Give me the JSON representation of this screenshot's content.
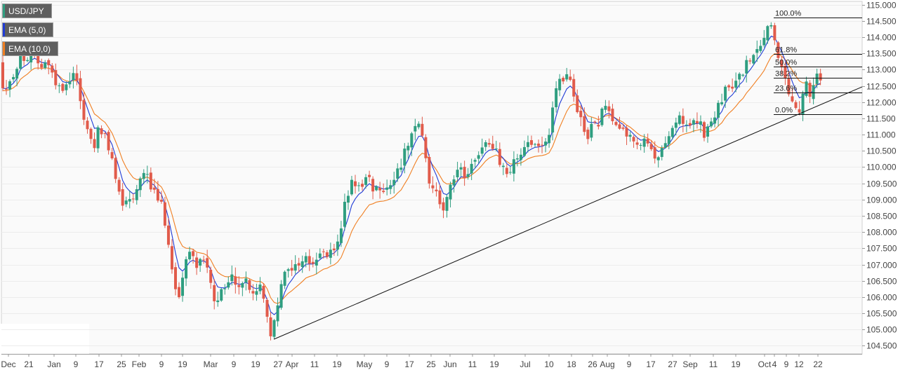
{
  "legend": {
    "items": [
      {
        "label": "USD/JPY",
        "color": "#2f9e80"
      },
      {
        "label": "EMA (5,0)",
        "color": "#1f3bd6"
      },
      {
        "label": "EMA (10,0)",
        "color": "#f07f22"
      }
    ]
  },
  "chart_data": {
    "type": "candlestick",
    "title": "USD/JPY",
    "series": [
      {
        "name": "USD/JPY"
      },
      {
        "name": "EMA (5,0)"
      },
      {
        "name": "EMA (10,0)"
      }
    ],
    "ylim": [
      104.25,
      115.1
    ],
    "y_ticks": [
      "115.000",
      "114.500",
      "114.000",
      "113.500",
      "113.000",
      "112.500",
      "112.000",
      "111.500",
      "111.000",
      "110.500",
      "110.000",
      "109.500",
      "109.000",
      "108.500",
      "108.000",
      "107.500",
      "107.000",
      "106.500",
      "106.000",
      "105.500",
      "105.000",
      "104.500"
    ],
    "x_tick_labels": [
      "Dec",
      "21",
      "Jan",
      "9",
      "17",
      "25",
      "Feb",
      "9",
      "19",
      "Mar",
      "9",
      "19",
      "27",
      "Apr",
      "11",
      "19",
      "May",
      "9",
      "17",
      "25",
      "Jun",
      "11",
      "19",
      "Jul",
      "10",
      "18",
      "26",
      "Aug",
      "9",
      "17",
      "27",
      "Sep",
      "11",
      "19",
      "Oct",
      "4",
      "9",
      "12",
      "22"
    ],
    "up_color": "#2f9e80",
    "down_color": "#e15b4b",
    "ema5_color": "#1f3bd6",
    "ema10_color": "#f07f22",
    "grid": true,
    "price_path": [
      [
        0,
        113.3
      ],
      [
        5,
        112.2
      ],
      [
        12,
        112.7
      ],
      [
        20,
        112.8
      ],
      [
        30,
        113.5
      ],
      [
        38,
        113.3
      ],
      [
        48,
        113.4
      ],
      [
        58,
        113.2
      ],
      [
        66,
        113.3
      ],
      [
        75,
        112.8
      ],
      [
        85,
        112.4
      ],
      [
        95,
        112.6
      ],
      [
        105,
        113.0
      ],
      [
        112,
        112.5
      ],
      [
        118,
        111.5
      ],
      [
        125,
        111.2
      ],
      [
        132,
        110.6
      ],
      [
        140,
        111.1
      ],
      [
        148,
        111.0
      ],
      [
        156,
        110.4
      ],
      [
        162,
        110.0
      ],
      [
        168,
        109.3
      ],
      [
        175,
        108.9
      ],
      [
        182,
        109.2
      ],
      [
        190,
        109.0
      ],
      [
        198,
        109.6
      ],
      [
        205,
        110.0
      ],
      [
        212,
        109.5
      ],
      [
        218,
        109.3
      ],
      [
        225,
        108.9
      ],
      [
        232,
        108.7
      ],
      [
        238,
        108.0
      ],
      [
        243,
        107.3
      ],
      [
        248,
        106.3
      ],
      [
        255,
        106.0
      ],
      [
        262,
        107.0
      ],
      [
        268,
        107.4
      ],
      [
        275,
        107.2
      ],
      [
        282,
        107.0
      ],
      [
        288,
        107.3
      ],
      [
        295,
        106.8
      ],
      [
        302,
        106.2
      ],
      [
        308,
        105.6
      ],
      [
        315,
        106.1
      ],
      [
        322,
        106.3
      ],
      [
        330,
        106.6
      ],
      [
        338,
        106.3
      ],
      [
        345,
        106.5
      ],
      [
        352,
        106.4
      ],
      [
        358,
        106.1
      ],
      [
        365,
        106.2
      ],
      [
        372,
        106.3
      ],
      [
        378,
        105.6
      ],
      [
        385,
        104.9
      ],
      [
        392,
        105.2
      ],
      [
        398,
        106.0
      ],
      [
        405,
        106.8
      ],
      [
        412,
        107.0
      ],
      [
        420,
        106.9
      ],
      [
        428,
        107.1
      ],
      [
        436,
        107.2
      ],
      [
        444,
        107.0
      ],
      [
        452,
        107.2
      ],
      [
        460,
        107.4
      ],
      [
        468,
        107.2
      ],
      [
        476,
        107.5
      ],
      [
        484,
        108.0
      ],
      [
        490,
        108.7
      ],
      [
        496,
        109.2
      ],
      [
        503,
        109.6
      ],
      [
        510,
        109.3
      ],
      [
        517,
        109.6
      ],
      [
        524,
        109.7
      ],
      [
        531,
        109.4
      ],
      [
        538,
        109.5
      ],
      [
        545,
        109.2
      ],
      [
        552,
        109.5
      ],
      [
        560,
        109.7
      ],
      [
        568,
        109.9
      ],
      [
        575,
        110.4
      ],
      [
        582,
        110.6
      ],
      [
        590,
        111.1
      ],
      [
        597,
        111.4
      ],
      [
        604,
        110.5
      ],
      [
        610,
        109.6
      ],
      [
        617,
        109.4
      ],
      [
        624,
        109.1
      ],
      [
        631,
        108.6
      ],
      [
        638,
        109.0
      ],
      [
        645,
        109.7
      ],
      [
        652,
        110.0
      ],
      [
        660,
        109.8
      ],
      [
        668,
        109.9
      ],
      [
        675,
        110.3
      ],
      [
        682,
        110.4
      ],
      [
        690,
        110.6
      ],
      [
        698,
        110.8
      ],
      [
        705,
        110.6
      ],
      [
        712,
        110.2
      ],
      [
        718,
        110.1
      ],
      [
        725,
        109.8
      ],
      [
        732,
        110.1
      ],
      [
        740,
        110.3
      ],
      [
        748,
        110.7
      ],
      [
        756,
        110.6
      ],
      [
        764,
        110.6
      ],
      [
        772,
        110.5
      ],
      [
        780,
        110.8
      ],
      [
        786,
        111.8
      ],
      [
        792,
        112.3
      ],
      [
        798,
        112.6
      ],
      [
        805,
        112.7
      ],
      [
        812,
        112.8
      ],
      [
        818,
        112.0
      ],
      [
        824,
        111.6
      ],
      [
        830,
        111.2
      ],
      [
        838,
        111.0
      ],
      [
        845,
        111.3
      ],
      [
        852,
        111.4
      ],
      [
        860,
        111.8
      ],
      [
        868,
        111.6
      ],
      [
        876,
        111.5
      ],
      [
        884,
        111.3
      ],
      [
        892,
        111.0
      ],
      [
        900,
        111.0
      ],
      [
        908,
        110.7
      ],
      [
        916,
        110.8
      ],
      [
        924,
        110.6
      ],
      [
        930,
        110.3
      ],
      [
        936,
        110.1
      ],
      [
        942,
        110.6
      ],
      [
        950,
        111.0
      ],
      [
        958,
        111.2
      ],
      [
        966,
        111.5
      ],
      [
        974,
        111.3
      ],
      [
        982,
        111.2
      ],
      [
        990,
        111.3
      ],
      [
        996,
        111.5
      ],
      [
        1002,
        111.0
      ],
      [
        1008,
        111.1
      ],
      [
        1014,
        111.4
      ],
      [
        1020,
        111.6
      ],
      [
        1026,
        112.0
      ],
      [
        1032,
        112.3
      ],
      [
        1040,
        112.5
      ],
      [
        1048,
        112.6
      ],
      [
        1055,
        112.8
      ],
      [
        1062,
        113.1
      ],
      [
        1068,
        113.2
      ],
      [
        1075,
        113.6
      ],
      [
        1082,
        113.8
      ],
      [
        1088,
        114.0
      ],
      [
        1094,
        114.4
      ],
      [
        1098,
        114.5
      ],
      [
        1103,
        113.9
      ],
      [
        1108,
        113.5
      ],
      [
        1113,
        113.0
      ],
      [
        1118,
        112.8
      ],
      [
        1123,
        112.4
      ],
      [
        1128,
        112.0
      ],
      [
        1133,
        112.0
      ],
      [
        1138,
        111.8
      ],
      [
        1143,
        112.3
      ],
      [
        1148,
        112.6
      ],
      [
        1153,
        112.3
      ],
      [
        1158,
        112.6
      ],
      [
        1163,
        112.7
      ],
      [
        1168,
        112.8
      ],
      [
        1172,
        112.8
      ]
    ],
    "ema10_offset": [
      [
        0,
        -0.2
      ],
      [
        100,
        -0.3
      ],
      [
        180,
        0.0
      ],
      [
        280,
        0.2
      ],
      [
        380,
        0.4
      ],
      [
        420,
        -0.4
      ],
      [
        500,
        -0.7
      ],
      [
        580,
        -0.7
      ],
      [
        640,
        0.0
      ],
      [
        720,
        0.0
      ],
      [
        790,
        -0.7
      ],
      [
        840,
        0.0
      ],
      [
        1000,
        -0.3
      ],
      [
        1090,
        -0.8
      ],
      [
        1140,
        0.3
      ],
      [
        1172,
        -0.1
      ]
    ],
    "trendline": {
      "from": {
        "x": "Mar 26",
        "y": 104.7
      },
      "to": {
        "x": "Oct 25",
        "y": 112.47
      }
    },
    "fibonacci": {
      "levels": [
        {
          "label": "100.0%",
          "value": 114.6
        },
        {
          "label": "61.8%",
          "value": 113.48
        },
        {
          "label": "50.0%",
          "value": 113.1
        },
        {
          "label": "38.2%",
          "value": 112.75
        },
        {
          "label": "23.6%",
          "value": 112.3
        },
        {
          "label": "0.0%",
          "value": 111.62
        }
      ]
    }
  }
}
